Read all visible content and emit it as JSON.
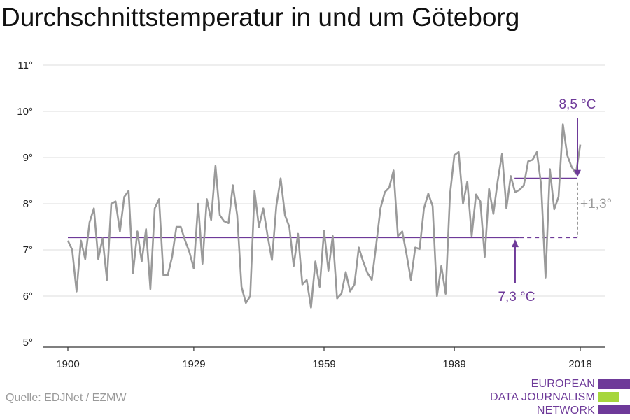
{
  "page": {
    "title": "Durchschnittstemperatur in und um Göteborg",
    "source": "Quelle: EDJNet / EZMW"
  },
  "logo": {
    "lines": [
      "EUROPEAN",
      "DATA JOURNALISM",
      "NETWORK"
    ],
    "colors": [
      "#6e3a99",
      "#a6d63c",
      "#6e3a99"
    ]
  },
  "annotations": {
    "recent_avg_label": "8,5 °C",
    "base_avg_label": "7,3 °C",
    "delta_label": "+1,3°"
  },
  "chart_data": {
    "type": "line",
    "title": "Durchschnittstemperatur in und um Göteborg",
    "xlabel": "",
    "ylabel": "",
    "xlim": [
      1900,
      2018
    ],
    "ylim": [
      5,
      11
    ],
    "x_ticks": [
      1900,
      1929,
      1959,
      1989,
      2018
    ],
    "x_tick_labels": [
      "1900",
      "1929",
      "1959",
      "1989",
      "2018"
    ],
    "y_ticks": [
      5,
      6,
      7,
      8,
      9,
      10,
      11
    ],
    "y_tick_labels": [
      "5°",
      "6°",
      "7°",
      "8°",
      "9°",
      "10°",
      "11°"
    ],
    "grid": "horizontal",
    "series": [
      {
        "color": "#9a9a9a",
        "x": [
          1900,
          1901,
          1902,
          1903,
          1904,
          1905,
          1906,
          1907,
          1908,
          1909,
          1910,
          1911,
          1912,
          1913,
          1914,
          1915,
          1916,
          1917,
          1918,
          1919,
          1920,
          1921,
          1922,
          1923,
          1924,
          1925,
          1926,
          1927,
          1928,
          1929,
          1930,
          1931,
          1932,
          1933,
          1934,
          1935,
          1936,
          1937,
          1938,
          1939,
          1940,
          1941,
          1942,
          1943,
          1944,
          1945,
          1946,
          1947,
          1948,
          1949,
          1950,
          1951,
          1952,
          1953,
          1954,
          1955,
          1956,
          1957,
          1958,
          1959,
          1960,
          1961,
          1962,
          1963,
          1964,
          1965,
          1966,
          1967,
          1968,
          1969,
          1970,
          1971,
          1972,
          1973,
          1974,
          1975,
          1976,
          1977,
          1978,
          1979,
          1980,
          1981,
          1982,
          1983,
          1984,
          1985,
          1986,
          1987,
          1988,
          1989,
          1990,
          1991,
          1992,
          1993,
          1994,
          1995,
          1996,
          1997,
          1998,
          1999,
          2000,
          2001,
          2002,
          2003,
          2004,
          2005,
          2006,
          2007,
          2008,
          2009,
          2010,
          2011,
          2012,
          2013,
          2014,
          2015,
          2016,
          2017,
          2018
        ],
        "values": [
          7.2,
          7.0,
          6.1,
          7.2,
          6.8,
          7.6,
          7.9,
          6.8,
          7.25,
          6.35,
          8.0,
          8.05,
          7.4,
          8.15,
          8.28,
          6.5,
          7.4,
          6.75,
          7.45,
          6.15,
          7.9,
          8.1,
          6.45,
          6.45,
          6.85,
          7.5,
          7.5,
          7.2,
          6.95,
          6.6,
          8.0,
          6.7,
          8.1,
          7.65,
          8.82,
          7.75,
          7.62,
          7.58,
          8.4,
          7.75,
          6.2,
          5.85,
          6.0,
          8.28,
          7.5,
          7.9,
          7.3,
          6.78,
          7.95,
          8.55,
          7.75,
          7.5,
          6.65,
          7.35,
          6.25,
          6.35,
          5.75,
          6.75,
          6.2,
          7.42,
          6.55,
          7.3,
          5.95,
          6.05,
          6.52,
          6.1,
          6.25,
          7.05,
          6.75,
          6.5,
          6.35,
          7.1,
          7.9,
          8.25,
          8.35,
          8.72,
          7.3,
          7.4,
          6.9,
          6.35,
          7.05,
          7.02,
          7.9,
          8.22,
          7.95,
          6.0,
          6.65,
          6.05,
          8.2,
          9.05,
          9.12,
          8.0,
          8.48,
          7.3,
          8.2,
          8.05,
          6.85,
          8.32,
          7.78,
          8.5,
          9.08,
          7.9,
          8.6,
          8.25,
          8.3,
          8.4,
          8.92,
          8.95,
          9.12,
          8.4,
          6.4,
          8.75,
          7.88,
          8.15,
          9.72,
          9.05,
          8.8,
          8.65,
          9.28
        ]
      }
    ],
    "reference_lines": [
      {
        "label": "7,3 °C",
        "value": 7.27,
        "x_start": 1900,
        "x_end": 2018,
        "solid_until": 2004,
        "color": "#6e3a99"
      },
      {
        "label": "8,5 °C",
        "value": 8.55,
        "x_start": 2004,
        "x_end": 2018,
        "color": "#6e3a99"
      }
    ]
  }
}
